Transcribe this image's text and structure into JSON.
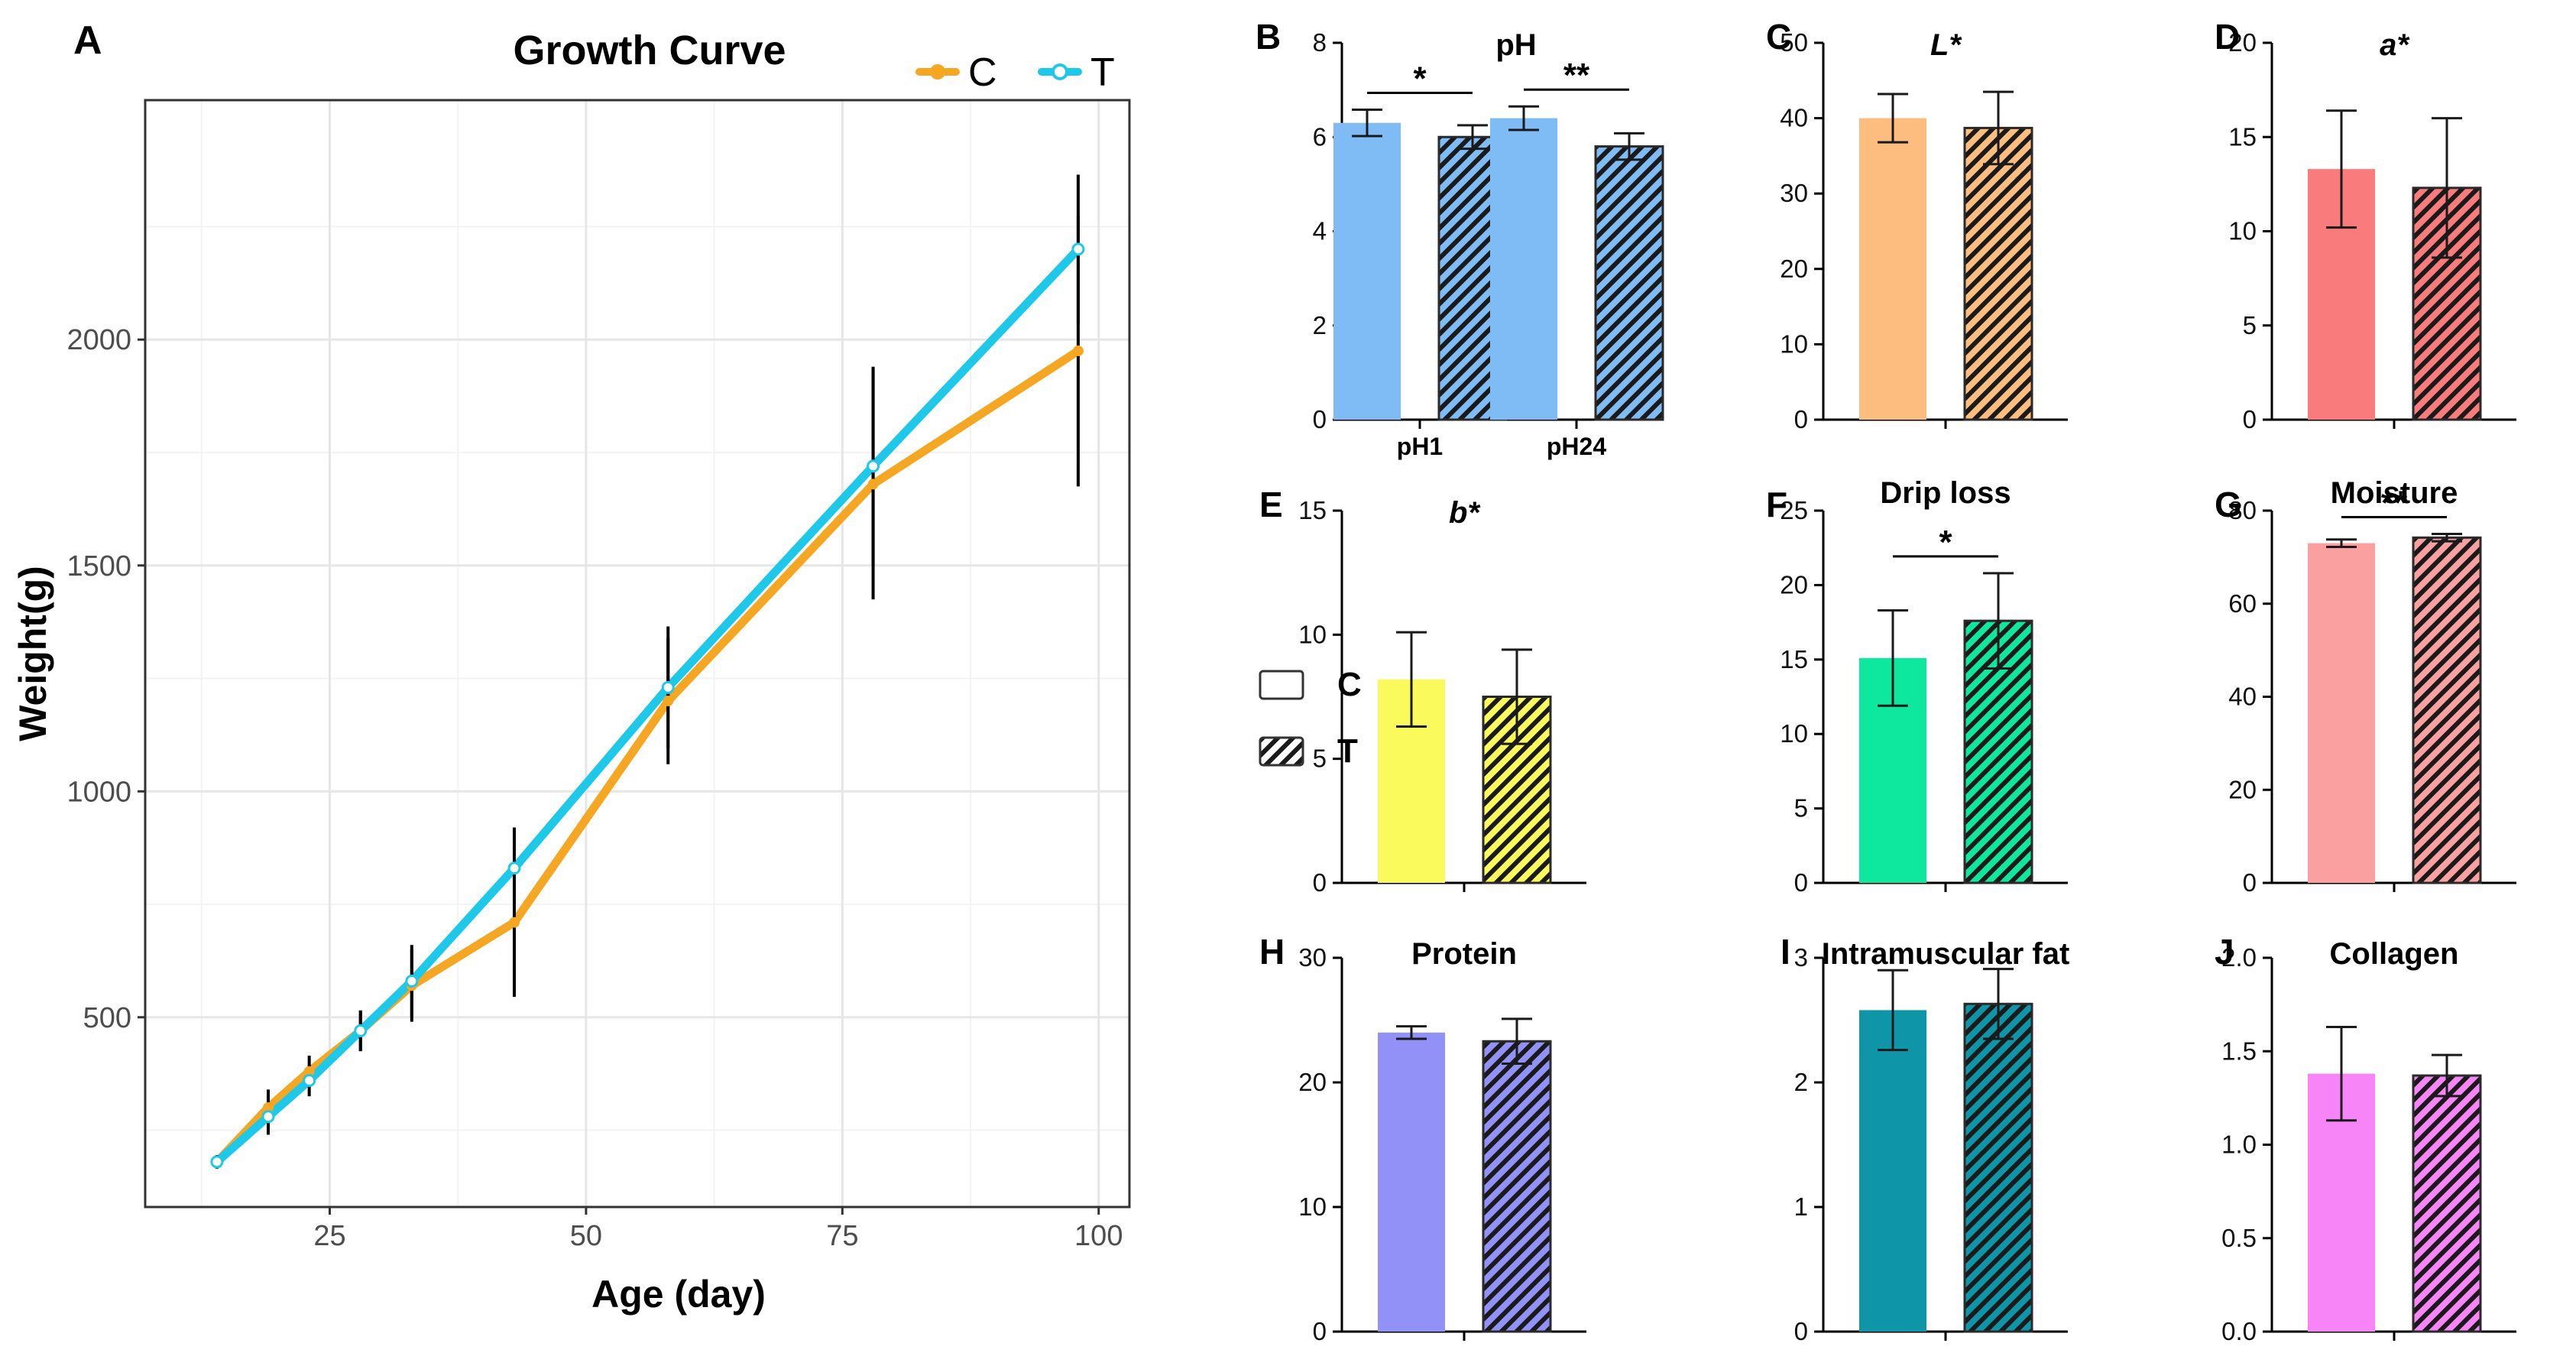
{
  "chart_data": [
    {
      "id": "A",
      "panel_label": "A",
      "type": "line",
      "title": "Growth Curve",
      "xlabel": "Age (day)",
      "ylabel": "Weight(g)",
      "xlim": [
        7,
        103
      ],
      "ylim": [
        80,
        2530
      ],
      "xticks": [
        25,
        50,
        75,
        100
      ],
      "yticks": [
        500,
        1000,
        1500,
        2000
      ],
      "grid": true,
      "legend_position": "top-right",
      "x": [
        14,
        19,
        23,
        28,
        33,
        43,
        58,
        78,
        98
      ],
      "series": [
        {
          "name": "C",
          "color": "#f5a623",
          "marker": "filled-circle",
          "values": [
            180,
            300,
            380,
            470,
            570,
            710,
            1200,
            1680,
            1975
          ],
          "error": [
            15,
            40,
            35,
            45,
            80,
            165,
            140,
            255,
            300
          ]
        },
        {
          "name": "T",
          "color": "#1ec8e8",
          "marker": "open-circle",
          "values": [
            180,
            280,
            360,
            470,
            580,
            830,
            1230,
            1720,
            2200
          ],
          "error": [
            15,
            40,
            35,
            45,
            80,
            90,
            135,
            220,
            165
          ]
        }
      ]
    },
    {
      "id": "B",
      "panel_label": "B",
      "type": "bar",
      "title": "pH",
      "title_italic": false,
      "ylim": [
        0,
        8
      ],
      "yticks": [
        "0",
        "2",
        "4",
        "6",
        "8"
      ],
      "categories": [
        "pH1",
        "pH24"
      ],
      "colors": [
        "#7fbbf4",
        "#7fbbf4"
      ],
      "series": [
        {
          "name": "C",
          "values": [
            6.3,
            6.4
          ],
          "error": [
            0.28,
            0.25
          ]
        },
        {
          "name": "T",
          "values": [
            6.0,
            5.8
          ],
          "error": [
            0.25,
            0.28
          ]
        }
      ],
      "significance": [
        {
          "category": 0,
          "label": "*"
        },
        {
          "category": 1,
          "label": "**"
        }
      ]
    },
    {
      "id": "C",
      "panel_label": "C",
      "type": "bar",
      "title": "L*",
      "title_italic": true,
      "ylim": [
        0,
        50
      ],
      "yticks": [
        "0",
        "10",
        "20",
        "30",
        "40",
        "50"
      ],
      "categories": [
        ""
      ],
      "colors": [
        "#fdbd7e"
      ],
      "series": [
        {
          "name": "C",
          "values": [
            40.0
          ],
          "error": [
            3.2
          ]
        },
        {
          "name": "T",
          "values": [
            38.7
          ],
          "error": [
            4.8
          ]
        }
      ],
      "significance": []
    },
    {
      "id": "D",
      "panel_label": "D",
      "type": "bar",
      "title": "a*",
      "title_italic": true,
      "ylim": [
        0,
        20
      ],
      "yticks": [
        "0",
        "5",
        "10",
        "15",
        "20"
      ],
      "categories": [
        ""
      ],
      "colors": [
        "#f97b7b"
      ],
      "series": [
        {
          "name": "C",
          "values": [
            13.3
          ],
          "error": [
            3.1
          ]
        },
        {
          "name": "T",
          "values": [
            12.3
          ],
          "error": [
            3.7
          ]
        }
      ],
      "significance": []
    },
    {
      "id": "E",
      "panel_label": "E",
      "type": "bar",
      "title": "b*",
      "title_italic": true,
      "ylim": [
        0,
        15
      ],
      "yticks": [
        "0",
        "5",
        "10",
        "15"
      ],
      "categories": [
        ""
      ],
      "colors": [
        "#fafa5c"
      ],
      "series": [
        {
          "name": "C",
          "values": [
            8.2
          ],
          "error": [
            1.9
          ]
        },
        {
          "name": "T",
          "values": [
            7.5
          ],
          "error": [
            1.9
          ]
        }
      ],
      "significance": []
    },
    {
      "id": "F",
      "panel_label": "F",
      "type": "bar",
      "title": "Drip loss",
      "title_italic": false,
      "ylim": [
        0,
        25
      ],
      "yticks": [
        "0",
        "5",
        "10",
        "15",
        "20",
        "25"
      ],
      "categories": [
        ""
      ],
      "colors": [
        "#0ee89e"
      ],
      "series": [
        {
          "name": "C",
          "values": [
            15.1
          ],
          "error": [
            3.2
          ]
        },
        {
          "name": "T",
          "values": [
            17.6
          ],
          "error": [
            3.2
          ]
        }
      ],
      "significance": [
        {
          "category": 0,
          "label": "*"
        }
      ]
    },
    {
      "id": "G",
      "panel_label": "G",
      "type": "bar",
      "title": "Moisture",
      "title_italic": false,
      "ylim": [
        0,
        80
      ],
      "yticks": [
        "0",
        "20",
        "40",
        "60",
        "80"
      ],
      "categories": [
        ""
      ],
      "colors": [
        "#fba0a0"
      ],
      "series": [
        {
          "name": "C",
          "values": [
            73.0
          ],
          "error": [
            0.8
          ]
        },
        {
          "name": "T",
          "values": [
            74.2
          ],
          "error": [
            0.8
          ]
        }
      ],
      "significance": [
        {
          "category": 0,
          "label": "**"
        }
      ]
    },
    {
      "id": "H",
      "panel_label": "H",
      "type": "bar",
      "title": "Protein",
      "title_italic": false,
      "ylim": [
        0,
        30
      ],
      "yticks": [
        "0",
        "10",
        "20",
        "30"
      ],
      "categories": [
        ""
      ],
      "colors": [
        "#9191f8"
      ],
      "series": [
        {
          "name": "C",
          "values": [
            24.0
          ],
          "error": [
            0.5
          ]
        },
        {
          "name": "T",
          "values": [
            23.3
          ],
          "error": [
            1.8
          ]
        }
      ],
      "significance": []
    },
    {
      "id": "I",
      "panel_label": "I",
      "type": "bar",
      "title": "Intramuscular fat",
      "title_italic": false,
      "ylim": [
        0,
        3
      ],
      "yticks": [
        "0",
        "1",
        "2",
        "3"
      ],
      "categories": [
        ""
      ],
      "colors": [
        "#0e95a8"
      ],
      "series": [
        {
          "name": "C",
          "values": [
            2.58
          ],
          "error": [
            0.32
          ]
        },
        {
          "name": "T",
          "values": [
            2.63
          ],
          "error": [
            0.28
          ]
        }
      ],
      "significance": []
    },
    {
      "id": "J",
      "panel_label": "J",
      "type": "bar",
      "title": "Collagen",
      "title_italic": false,
      "ylim": [
        0,
        2.0
      ],
      "yticks": [
        "0.0",
        "0.5",
        "1.0",
        "1.5",
        "2.0"
      ],
      "categories": [
        ""
      ],
      "colors": [
        "#f885f8"
      ],
      "series": [
        {
          "name": "C",
          "values": [
            1.38
          ],
          "error": [
            0.25
          ]
        },
        {
          "name": "T",
          "values": [
            1.37
          ],
          "error": [
            0.11
          ]
        }
      ],
      "significance": []
    }
  ],
  "legend": {
    "items": [
      {
        "label": "C",
        "pattern": "empty"
      },
      {
        "label": "T",
        "pattern": "hatched"
      }
    ]
  }
}
